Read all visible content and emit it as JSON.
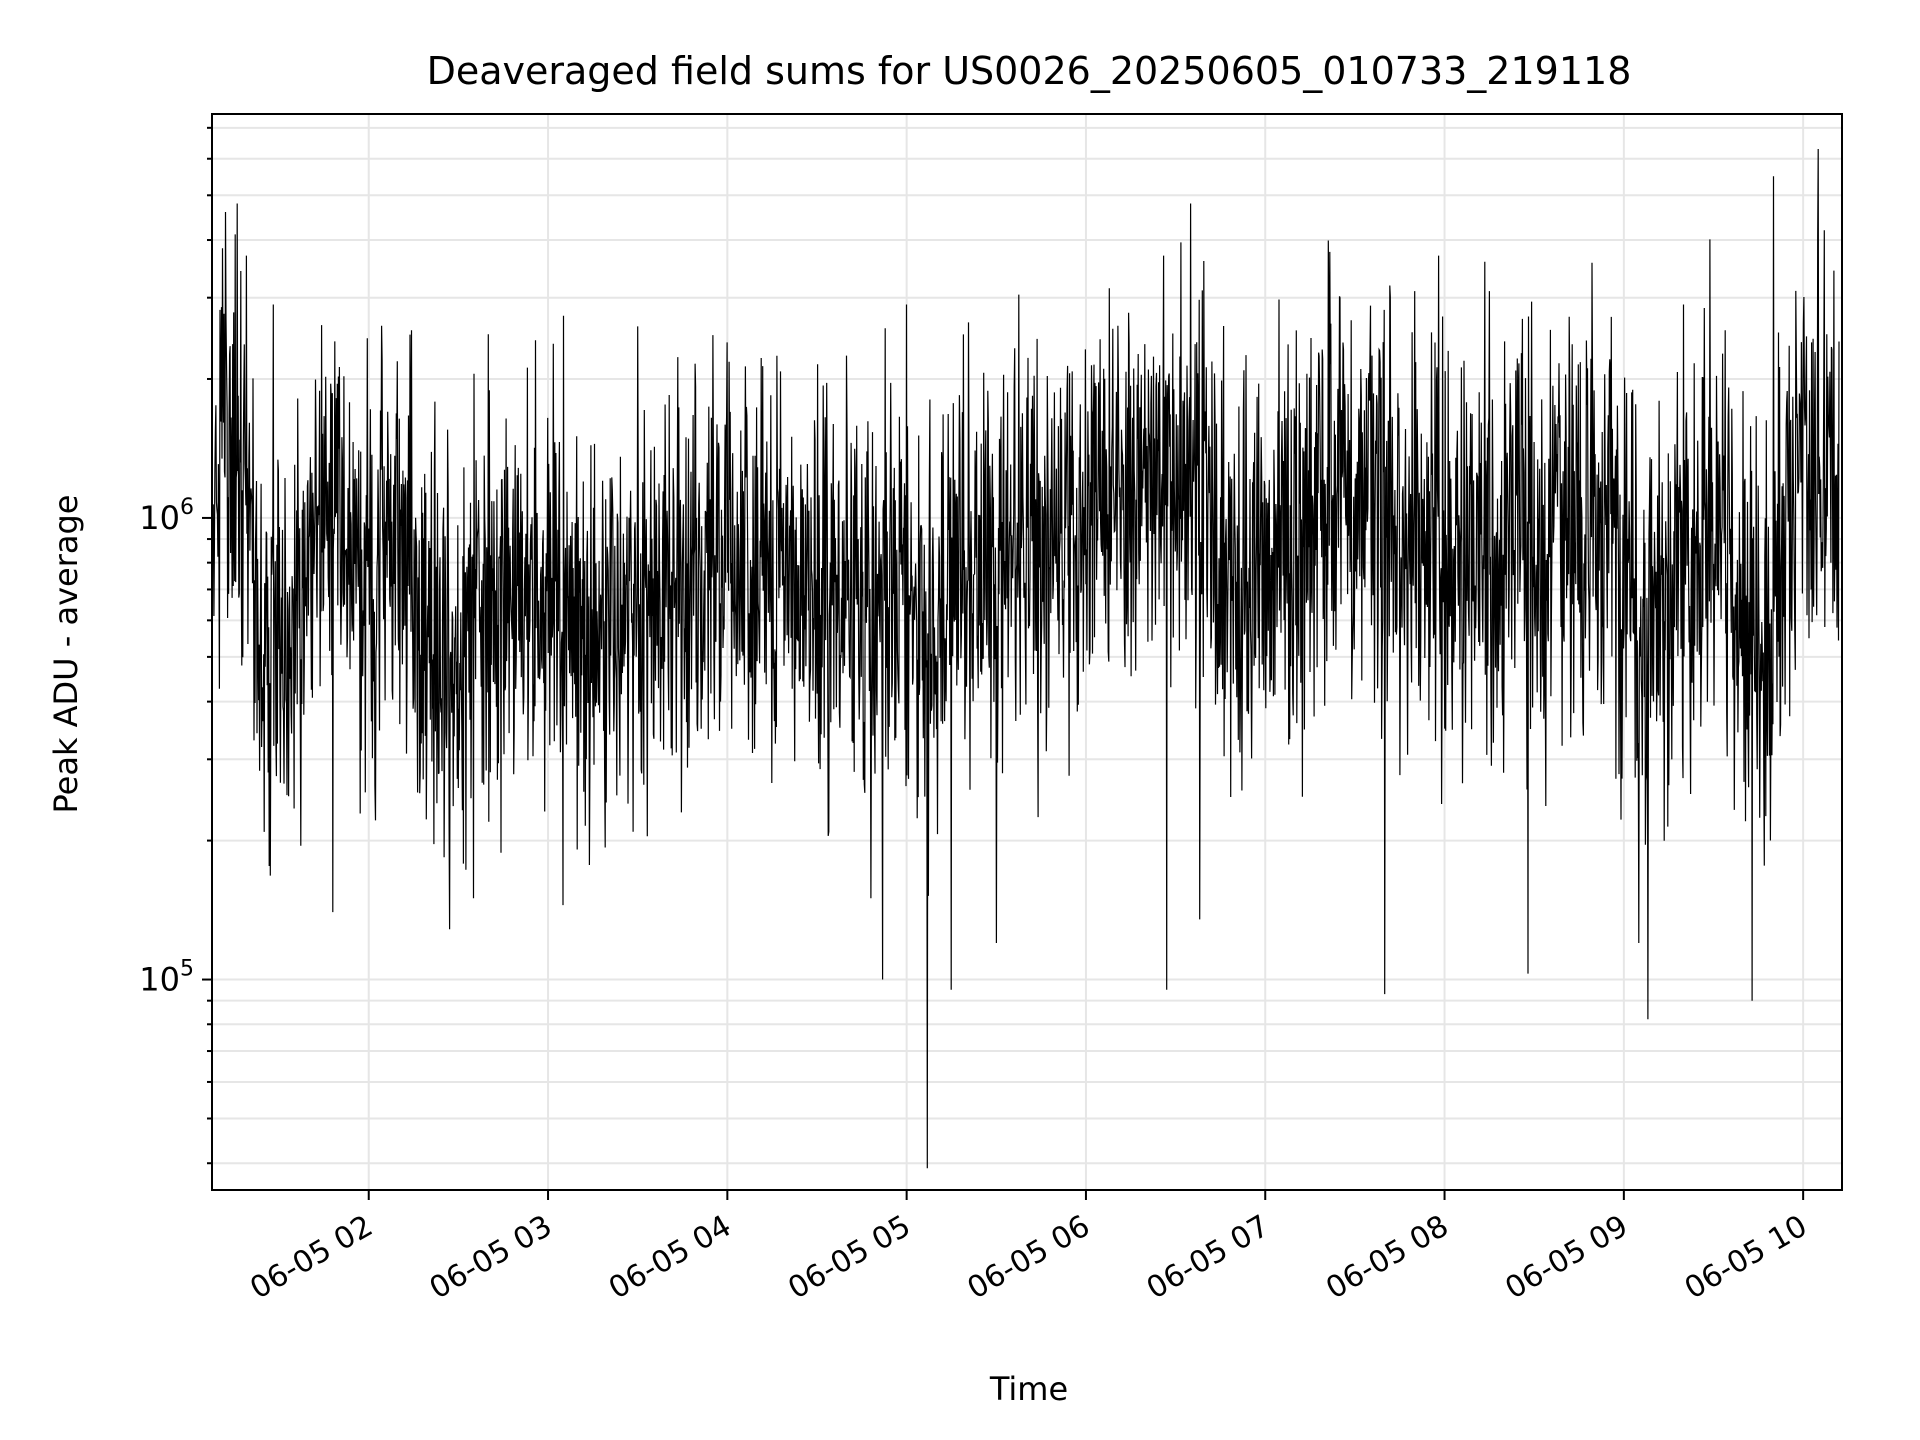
{
  "chart_data": {
    "type": "line",
    "title": "Deaveraged field sums for US0026_20250605_010733_219118",
    "xlabel": "Time",
    "ylabel": "Peak ADU - average",
    "x_range": [
      "2025-06-05T01:07:33",
      "2025-06-05T10:13:00"
    ],
    "y_scale": "log",
    "ylim": [
      35000,
      7500000
    ],
    "x_ticks": [
      {
        "value": "2025-06-05T02:00",
        "label": "06-05 02"
      },
      {
        "value": "2025-06-05T03:00",
        "label": "06-05 03"
      },
      {
        "value": "2025-06-05T04:00",
        "label": "06-05 04"
      },
      {
        "value": "2025-06-05T05:00",
        "label": "06-05 05"
      },
      {
        "value": "2025-06-05T06:00",
        "label": "06-05 06"
      },
      {
        "value": "2025-06-05T07:00",
        "label": "06-05 07"
      },
      {
        "value": "2025-06-05T08:00",
        "label": "06-05 08"
      },
      {
        "value": "2025-06-05T09:00",
        "label": "06-05 09"
      },
      {
        "value": "2025-06-05T10:00",
        "label": "06-05 10"
      }
    ],
    "y_ticks": [
      {
        "value": 100000,
        "base": "10",
        "exp": "5"
      },
      {
        "value": 1000000,
        "base": "10",
        "exp": "6"
      }
    ],
    "grid": true,
    "line_color": "#000000",
    "series": [
      {
        "points": [
          [
            "2025-06-05T01:08",
            1200000
          ],
          [
            "2025-06-05T01:10",
            1500000
          ],
          [
            "2025-06-05T01:12",
            2200000
          ],
          [
            "2025-06-05T01:14",
            1300000
          ],
          [
            "2025-06-05T01:16",
            1800000
          ],
          [
            "2025-06-05T01:18",
            1100000
          ],
          [
            "2025-06-05T01:20",
            900000
          ],
          [
            "2025-06-05T01:22",
            700000
          ],
          [
            "2025-06-05T01:24",
            600000
          ],
          [
            "2025-06-05T01:26",
            500000
          ],
          [
            "2025-06-05T01:28",
            450000
          ],
          [
            "2025-06-05T01:30",
            600000
          ],
          [
            "2025-06-05T01:33",
            500000
          ],
          [
            "2025-06-05T01:36",
            650000
          ],
          [
            "2025-06-05T01:40",
            800000
          ],
          [
            "2025-06-05T01:45",
            1100000
          ],
          [
            "2025-06-05T01:50",
            1000000
          ],
          [
            "2025-06-05T01:55",
            800000
          ],
          [
            "2025-06-05T02:00",
            700000
          ],
          [
            "2025-06-05T02:10",
            900000
          ],
          [
            "2025-06-05T02:15",
            650000
          ],
          [
            "2025-06-05T02:20",
            500000
          ],
          [
            "2025-06-05T02:25",
            400000
          ],
          [
            "2025-06-05T02:30",
            500000
          ],
          [
            "2025-06-05T02:40",
            650000
          ],
          [
            "2025-06-05T02:50",
            700000
          ],
          [
            "2025-06-05T03:00",
            650000
          ],
          [
            "2025-06-05T03:10",
            600000
          ],
          [
            "2025-06-05T03:20",
            550000
          ],
          [
            "2025-06-05T03:30",
            650000
          ],
          [
            "2025-06-05T03:45",
            750000
          ],
          [
            "2025-06-05T04:00",
            800000
          ],
          [
            "2025-06-05T04:15",
            800000
          ],
          [
            "2025-06-05T04:30",
            700000
          ],
          [
            "2025-06-05T04:40",
            650000
          ],
          [
            "2025-06-05T04:50",
            700000
          ],
          [
            "2025-06-05T05:00",
            800000
          ],
          [
            "2025-06-05T05:07",
            550000
          ],
          [
            "2025-06-05T05:15",
            750000
          ],
          [
            "2025-06-05T05:30",
            800000
          ],
          [
            "2025-06-05T05:45",
            850000
          ],
          [
            "2025-06-05T06:00",
            950000
          ],
          [
            "2025-06-05T06:15",
            1100000
          ],
          [
            "2025-06-05T06:30",
            1250000
          ],
          [
            "2025-06-05T06:40",
            1100000
          ],
          [
            "2025-06-05T06:50",
            700000
          ],
          [
            "2025-06-05T07:00",
            800000
          ],
          [
            "2025-06-05T07:15",
            1000000
          ],
          [
            "2025-06-05T07:25",
            1400000
          ],
          [
            "2025-06-05T07:35",
            1150000
          ],
          [
            "2025-06-05T07:45",
            950000
          ],
          [
            "2025-06-05T08:00",
            850000
          ],
          [
            "2025-06-05T08:15",
            850000
          ],
          [
            "2025-06-05T08:30",
            900000
          ],
          [
            "2025-06-05T08:45",
            950000
          ],
          [
            "2025-06-05T08:55",
            1050000
          ],
          [
            "2025-06-05T09:00",
            650000
          ],
          [
            "2025-06-05T09:10",
            550000
          ],
          [
            "2025-06-05T09:20",
            900000
          ],
          [
            "2025-06-05T09:30",
            1100000
          ],
          [
            "2025-06-05T09:40",
            700000
          ],
          [
            "2025-06-05T09:45",
            500000
          ],
          [
            "2025-06-05T09:50",
            650000
          ],
          [
            "2025-06-05T09:55",
            1000000
          ],
          [
            "2025-06-05T10:00",
            1300000
          ],
          [
            "2025-06-05T10:05",
            1150000
          ],
          [
            "2025-06-05T10:10",
            1200000
          ],
          [
            "2025-06-05T10:12",
            1000000
          ]
        ]
      }
    ],
    "spikes_high": [
      [
        "2025-06-05T01:12",
        4600000
      ],
      [
        "2025-06-05T01:16",
        4800000
      ],
      [
        "2025-06-05T01:19",
        3700000
      ],
      [
        "2025-06-05T01:28",
        2900000
      ],
      [
        "2025-06-05T02:40",
        2500000
      ],
      [
        "2025-06-05T03:30",
        2600000
      ],
      [
        "2025-06-05T04:00",
        2400000
      ],
      [
        "2025-06-05T05:00",
        2900000
      ],
      [
        "2025-06-05T06:26",
        3700000
      ],
      [
        "2025-06-05T06:35",
        4800000
      ],
      [
        "2025-06-05T07:25",
        3000000
      ],
      [
        "2025-06-05T07:50",
        3100000
      ],
      [
        "2025-06-05T07:58",
        3700000
      ],
      [
        "2025-06-05T08:15",
        3100000
      ],
      [
        "2025-06-05T09:20",
        2900000
      ],
      [
        "2025-06-05T09:50",
        5500000
      ],
      [
        "2025-06-05T10:05",
        6300000
      ],
      [
        "2025-06-05T10:07",
        4200000
      ]
    ],
    "spikes_low": [
      [
        "2025-06-05T01:48",
        140000
      ],
      [
        "2025-06-05T02:35",
        150000
      ],
      [
        "2025-06-05T03:05",
        145000
      ],
      [
        "2025-06-05T04:48",
        150000
      ],
      [
        "2025-06-05T04:52",
        100000
      ],
      [
        "2025-06-05T05:07",
        39000
      ],
      [
        "2025-06-05T05:15",
        95000
      ],
      [
        "2025-06-05T05:30",
        120000
      ],
      [
        "2025-06-05T06:27",
        95000
      ],
      [
        "2025-06-05T06:38",
        135000
      ],
      [
        "2025-06-05T07:40",
        93000
      ],
      [
        "2025-06-05T08:28",
        103000
      ],
      [
        "2025-06-05T09:05",
        120000
      ],
      [
        "2025-06-05T09:08",
        82000
      ],
      [
        "2025-06-05T09:43",
        90000
      ]
    ]
  }
}
